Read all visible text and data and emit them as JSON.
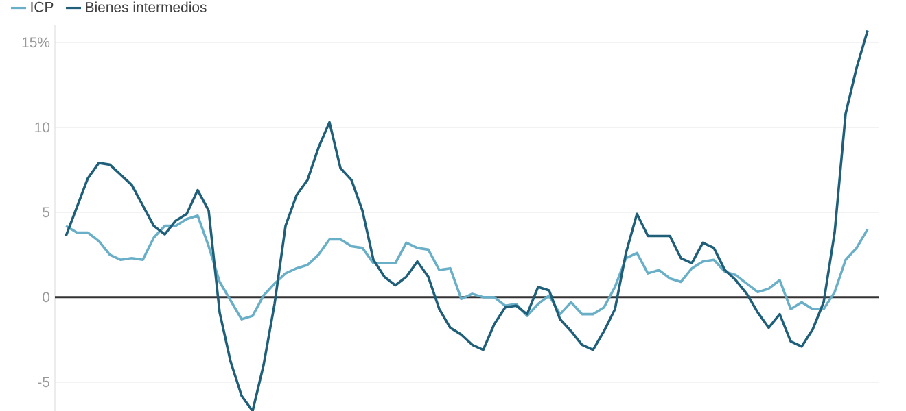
{
  "chart_data": {
    "type": "line",
    "categories": [
      null,
      null,
      null,
      null,
      null,
      null,
      null,
      null,
      null,
      null,
      null,
      null,
      null,
      null,
      null,
      null,
      null,
      null,
      null,
      null,
      null,
      null,
      null,
      null,
      null,
      null,
      null,
      null,
      null,
      null,
      null,
      null,
      null,
      null,
      null,
      null,
      null,
      null,
      null,
      null,
      null,
      null,
      null,
      null,
      null,
      null,
      null,
      null,
      null,
      null,
      null,
      null,
      null,
      null,
      null,
      null,
      null,
      null,
      null,
      null,
      null,
      null,
      null,
      null,
      null,
      null,
      null,
      null,
      null,
      null,
      null,
      null,
      null,
      null
    ],
    "series": [
      {
        "name": "ICP",
        "color": "#6aafc8",
        "values": [
          4.2,
          3.8,
          3.8,
          3.3,
          2.5,
          2.2,
          2.3,
          2.2,
          3.5,
          4.2,
          4.2,
          4.6,
          4.8,
          3.0,
          0.9,
          -0.2,
          -1.3,
          -1.1,
          0.1,
          0.8,
          1.4,
          1.7,
          1.9,
          2.5,
          3.4,
          3.4,
          3.0,
          2.9,
          2.0,
          2.0,
          2.0,
          3.2,
          2.9,
          2.8,
          1.6,
          1.7,
          -0.1,
          0.2,
          0.0,
          0.0,
          -0.5,
          -0.4,
          -1.1,
          -0.4,
          0.1,
          -1.0,
          -0.3,
          -1.0,
          -1.0,
          -0.6,
          0.6,
          2.3,
          2.6,
          1.4,
          1.6,
          1.1,
          0.9,
          1.7,
          2.1,
          2.2,
          1.5,
          1.3,
          0.8,
          0.3,
          0.5,
          1.0,
          -0.7,
          -0.3,
          -0.7,
          -0.7,
          0.3,
          2.2,
          2.9,
          4.0
        ]
      },
      {
        "name": "Bienes intermedios",
        "color": "#1f5f7a",
        "values": [
          3.6,
          5.3,
          7.0,
          7.9,
          7.8,
          7.2,
          6.6,
          5.4,
          4.2,
          3.7,
          4.5,
          4.9,
          6.3,
          5.1,
          -0.9,
          -3.8,
          -5.8,
          -6.7,
          -4.0,
          -0.4,
          4.2,
          6.0,
          6.9,
          8.8,
          10.3,
          7.6,
          6.9,
          5.1,
          2.2,
          1.2,
          0.7,
          1.2,
          2.1,
          1.2,
          -0.7,
          -1.8,
          -2.2,
          -2.8,
          -3.1,
          -1.6,
          -0.6,
          -0.5,
          -1.0,
          0.6,
          0.4,
          -1.3,
          -2.0,
          -2.8,
          -3.1,
          -2.0,
          -0.7,
          2.6,
          4.9,
          3.6,
          3.6,
          3.6,
          2.3,
          2.0,
          3.2,
          2.9,
          1.6,
          1.0,
          0.2,
          -0.9,
          -1.8,
          -1.0,
          -2.6,
          -2.9,
          -1.9,
          -0.3,
          3.8,
          10.8,
          13.5,
          15.7
        ]
      }
    ],
    "ylim": [
      -6.7,
      16
    ],
    "yticks": [
      {
        "value": -5,
        "label": "-5"
      },
      0,
      5,
      10,
      {
        "value": 15,
        "label": "15%"
      }
    ],
    "grid": "y",
    "legend": "top left",
    "tick_labels": "y",
    "ref_lines": [
      {
        "axis": "y",
        "value": 0,
        "color": "#333333"
      }
    ]
  }
}
